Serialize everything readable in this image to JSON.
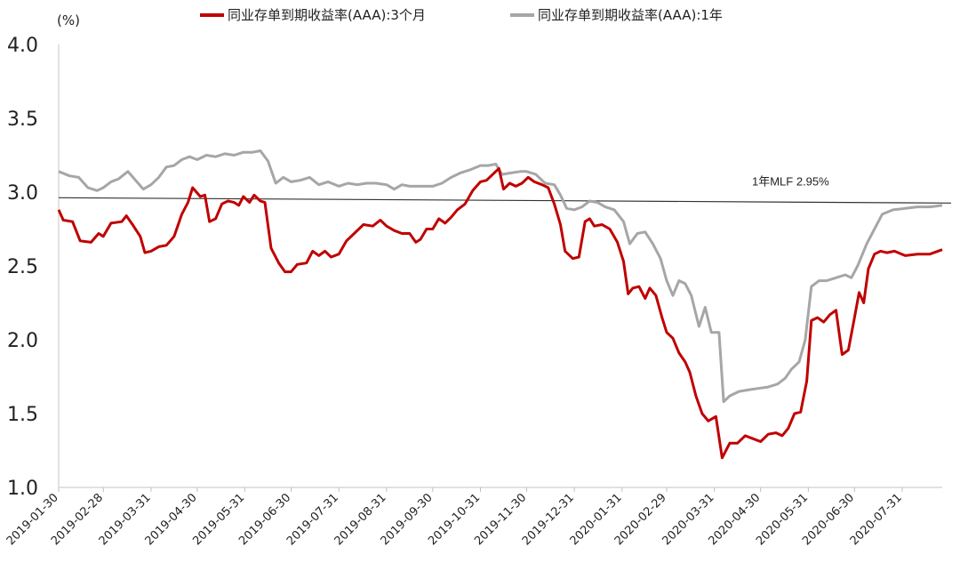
{
  "chart_data": {
    "type": "line",
    "unit_label": "(%)",
    "ylim": [
      1.0,
      4.0
    ],
    "y_ticks": [
      "1.0",
      "1.5",
      "2.0",
      "2.5",
      "3.0",
      "3.5",
      "4.0"
    ],
    "x_tick_labels": [
      "2019-01-30",
      "2019-02-28",
      "2019-03-31",
      "2019-04-30",
      "2019-05-31",
      "2019-06-30",
      "2019-07-31",
      "2019-08-31",
      "2019-09-30",
      "2019-10-31",
      "2019-11-30",
      "2019-12-31",
      "2020-01-31",
      "2020-02-29",
      "2020-03-31",
      "2020-04-30",
      "2020-05-31",
      "2020-06-30",
      "2020-07-31"
    ],
    "x_tick_dates": [
      "2019-01-30",
      "2019-02-28",
      "2019-03-31",
      "2019-04-30",
      "2019-05-31",
      "2019-06-30",
      "2019-07-31",
      "2019-08-31",
      "2019-09-30",
      "2019-10-31",
      "2019-11-30",
      "2019-12-31",
      "2020-01-31",
      "2020-02-29",
      "2020-03-31",
      "2020-04-30",
      "2020-05-31",
      "2020-06-30",
      "2020-07-31"
    ],
    "x_range": [
      "2019-01-30",
      "2020-08-26"
    ],
    "grid": false,
    "legend_position": "top",
    "reference_line": {
      "label": "1年MLF 2.95%",
      "value": 2.95,
      "color": "#333333"
    },
    "series": [
      {
        "name": "同业存单到期收益率(AAA):3个月",
        "color": "#c00000",
        "points": [
          [
            "2019-01-30",
            2.88
          ],
          [
            "2019-02-02",
            2.81
          ],
          [
            "2019-02-08",
            2.8
          ],
          [
            "2019-02-13",
            2.67
          ],
          [
            "2019-02-20",
            2.66
          ],
          [
            "2019-02-25",
            2.72
          ],
          [
            "2019-02-28",
            2.7
          ],
          [
            "2019-03-05",
            2.79
          ],
          [
            "2019-03-12",
            2.8
          ],
          [
            "2019-03-15",
            2.84
          ],
          [
            "2019-03-19",
            2.78
          ],
          [
            "2019-03-24",
            2.7
          ],
          [
            "2019-03-27",
            2.59
          ],
          [
            "2019-03-31",
            2.6
          ],
          [
            "2019-04-05",
            2.63
          ],
          [
            "2019-04-10",
            2.64
          ],
          [
            "2019-04-15",
            2.7
          ],
          [
            "2019-04-20",
            2.85
          ],
          [
            "2019-04-24",
            2.93
          ],
          [
            "2019-04-27",
            3.03
          ],
          [
            "2019-05-02",
            2.97
          ],
          [
            "2019-05-05",
            2.98
          ],
          [
            "2019-05-08",
            2.8
          ],
          [
            "2019-05-12",
            2.82
          ],
          [
            "2019-05-16",
            2.92
          ],
          [
            "2019-05-20",
            2.94
          ],
          [
            "2019-05-24",
            2.93
          ],
          [
            "2019-05-27",
            2.91
          ],
          [
            "2019-05-30",
            2.97
          ],
          [
            "2019-06-03",
            2.93
          ],
          [
            "2019-06-06",
            2.98
          ],
          [
            "2019-06-10",
            2.94
          ],
          [
            "2019-06-13",
            2.93
          ],
          [
            "2019-06-17",
            2.62
          ],
          [
            "2019-06-22",
            2.52
          ],
          [
            "2019-06-26",
            2.46
          ],
          [
            "2019-06-30",
            2.46
          ],
          [
            "2019-07-04",
            2.51
          ],
          [
            "2019-07-10",
            2.52
          ],
          [
            "2019-07-14",
            2.6
          ],
          [
            "2019-07-18",
            2.57
          ],
          [
            "2019-07-22",
            2.6
          ],
          [
            "2019-07-26",
            2.56
          ],
          [
            "2019-07-31",
            2.58
          ],
          [
            "2019-08-05",
            2.67
          ],
          [
            "2019-08-10",
            2.72
          ],
          [
            "2019-08-16",
            2.78
          ],
          [
            "2019-08-22",
            2.77
          ],
          [
            "2019-08-27",
            2.81
          ],
          [
            "2019-08-31",
            2.77
          ],
          [
            "2019-09-05",
            2.74
          ],
          [
            "2019-09-10",
            2.72
          ],
          [
            "2019-09-15",
            2.72
          ],
          [
            "2019-09-19",
            2.66
          ],
          [
            "2019-09-22",
            2.68
          ],
          [
            "2019-09-26",
            2.75
          ],
          [
            "2019-09-30",
            2.75
          ],
          [
            "2019-10-04",
            2.82
          ],
          [
            "2019-10-08",
            2.79
          ],
          [
            "2019-10-12",
            2.83
          ],
          [
            "2019-10-16",
            2.88
          ],
          [
            "2019-10-21",
            2.92
          ],
          [
            "2019-10-26",
            3.01
          ],
          [
            "2019-10-31",
            3.07
          ],
          [
            "2019-11-04",
            3.08
          ],
          [
            "2019-11-08",
            3.12
          ],
          [
            "2019-11-12",
            3.16
          ],
          [
            "2019-11-15",
            3.02
          ],
          [
            "2019-11-19",
            3.06
          ],
          [
            "2019-11-23",
            3.04
          ],
          [
            "2019-11-27",
            3.06
          ],
          [
            "2019-12-01",
            3.1
          ],
          [
            "2019-12-05",
            3.07
          ],
          [
            "2019-12-10",
            3.05
          ],
          [
            "2019-12-14",
            3.03
          ],
          [
            "2019-12-18",
            2.92
          ],
          [
            "2019-12-22",
            2.78
          ],
          [
            "2019-12-25",
            2.6
          ],
          [
            "2019-12-30",
            2.55
          ],
          [
            "2020-01-03",
            2.56
          ],
          [
            "2020-01-07",
            2.8
          ],
          [
            "2020-01-10",
            2.82
          ],
          [
            "2020-01-13",
            2.77
          ],
          [
            "2020-01-18",
            2.78
          ],
          [
            "2020-01-23",
            2.75
          ],
          [
            "2020-01-28",
            2.66
          ],
          [
            "2020-02-01",
            2.53
          ],
          [
            "2020-02-04",
            2.31
          ],
          [
            "2020-02-07",
            2.35
          ],
          [
            "2020-02-11",
            2.36
          ],
          [
            "2020-02-15",
            2.28
          ],
          [
            "2020-02-18",
            2.35
          ],
          [
            "2020-02-22",
            2.3
          ],
          [
            "2020-02-26",
            2.15
          ],
          [
            "2020-02-29",
            2.05
          ],
          [
            "2020-03-04",
            2.01
          ],
          [
            "2020-03-08",
            1.91
          ],
          [
            "2020-03-12",
            1.85
          ],
          [
            "2020-03-15",
            1.78
          ],
          [
            "2020-03-19",
            1.62
          ],
          [
            "2020-03-23",
            1.5
          ],
          [
            "2020-03-27",
            1.45
          ],
          [
            "2020-04-01",
            1.48
          ],
          [
            "2020-04-05",
            1.2
          ],
          [
            "2020-04-10",
            1.3
          ],
          [
            "2020-04-15",
            1.3
          ],
          [
            "2020-04-20",
            1.35
          ],
          [
            "2020-04-25",
            1.33
          ],
          [
            "2020-04-30",
            1.31
          ],
          [
            "2020-05-05",
            1.36
          ],
          [
            "2020-05-10",
            1.37
          ],
          [
            "2020-05-14",
            1.35
          ],
          [
            "2020-05-18",
            1.4
          ],
          [
            "2020-05-22",
            1.5
          ],
          [
            "2020-05-26",
            1.51
          ],
          [
            "2020-05-30",
            1.72
          ],
          [
            "2020-06-02",
            2.13
          ],
          [
            "2020-06-06",
            2.15
          ],
          [
            "2020-06-10",
            2.12
          ],
          [
            "2020-06-14",
            2.17
          ],
          [
            "2020-06-18",
            2.2
          ],
          [
            "2020-06-22",
            1.9
          ],
          [
            "2020-06-26",
            1.93
          ],
          [
            "2020-06-30",
            2.15
          ],
          [
            "2020-07-03",
            2.32
          ],
          [
            "2020-07-06",
            2.25
          ],
          [
            "2020-07-09",
            2.48
          ],
          [
            "2020-07-13",
            2.58
          ],
          [
            "2020-07-17",
            2.6
          ],
          [
            "2020-07-21",
            2.59
          ],
          [
            "2020-07-26",
            2.6
          ],
          [
            "2020-08-02",
            2.57
          ],
          [
            "2020-08-10",
            2.58
          ],
          [
            "2020-08-18",
            2.58
          ],
          [
            "2020-08-26",
            2.61
          ]
        ]
      },
      {
        "name": "同业存单到期收益率(AAA):1年",
        "color": "#a6a6a6",
        "points": [
          [
            "2019-01-30",
            3.14
          ],
          [
            "2019-02-06",
            3.11
          ],
          [
            "2019-02-12",
            3.1
          ],
          [
            "2019-02-18",
            3.03
          ],
          [
            "2019-02-24",
            3.01
          ],
          [
            "2019-02-28",
            3.03
          ],
          [
            "2019-03-05",
            3.07
          ],
          [
            "2019-03-10",
            3.09
          ],
          [
            "2019-03-16",
            3.14
          ],
          [
            "2019-03-21",
            3.08
          ],
          [
            "2019-03-26",
            3.02
          ],
          [
            "2019-03-31",
            3.05
          ],
          [
            "2019-04-05",
            3.1
          ],
          [
            "2019-04-10",
            3.17
          ],
          [
            "2019-04-15",
            3.18
          ],
          [
            "2019-04-20",
            3.22
          ],
          [
            "2019-04-25",
            3.24
          ],
          [
            "2019-04-30",
            3.22
          ],
          [
            "2019-05-06",
            3.25
          ],
          [
            "2019-05-12",
            3.24
          ],
          [
            "2019-05-18",
            3.26
          ],
          [
            "2019-05-24",
            3.25
          ],
          [
            "2019-05-30",
            3.27
          ],
          [
            "2019-06-05",
            3.27
          ],
          [
            "2019-06-10",
            3.28
          ],
          [
            "2019-06-15",
            3.21
          ],
          [
            "2019-06-20",
            3.06
          ],
          [
            "2019-06-25",
            3.1
          ],
          [
            "2019-06-30",
            3.07
          ],
          [
            "2019-07-06",
            3.08
          ],
          [
            "2019-07-12",
            3.1
          ],
          [
            "2019-07-18",
            3.05
          ],
          [
            "2019-07-24",
            3.07
          ],
          [
            "2019-07-31",
            3.04
          ],
          [
            "2019-08-06",
            3.06
          ],
          [
            "2019-08-12",
            3.05
          ],
          [
            "2019-08-18",
            3.06
          ],
          [
            "2019-08-24",
            3.06
          ],
          [
            "2019-08-31",
            3.05
          ],
          [
            "2019-09-05",
            3.02
          ],
          [
            "2019-09-10",
            3.05
          ],
          [
            "2019-09-15",
            3.04
          ],
          [
            "2019-09-20",
            3.04
          ],
          [
            "2019-09-25",
            3.04
          ],
          [
            "2019-09-30",
            3.04
          ],
          [
            "2019-10-06",
            3.06
          ],
          [
            "2019-10-12",
            3.1
          ],
          [
            "2019-10-18",
            3.13
          ],
          [
            "2019-10-24",
            3.15
          ],
          [
            "2019-10-31",
            3.18
          ],
          [
            "2019-11-05",
            3.18
          ],
          [
            "2019-11-10",
            3.19
          ],
          [
            "2019-11-14",
            3.12
          ],
          [
            "2019-11-20",
            3.13
          ],
          [
            "2019-11-26",
            3.14
          ],
          [
            "2019-11-30",
            3.14
          ],
          [
            "2019-12-06",
            3.12
          ],
          [
            "2019-12-12",
            3.06
          ],
          [
            "2019-12-18",
            3.05
          ],
          [
            "2019-12-22",
            2.98
          ],
          [
            "2019-12-26",
            2.89
          ],
          [
            "2019-12-31",
            2.88
          ],
          [
            "2020-01-05",
            2.9
          ],
          [
            "2020-01-10",
            2.94
          ],
          [
            "2020-01-15",
            2.93
          ],
          [
            "2020-01-20",
            2.9
          ],
          [
            "2020-01-26",
            2.88
          ],
          [
            "2020-02-01",
            2.8
          ],
          [
            "2020-02-05",
            2.65
          ],
          [
            "2020-02-10",
            2.72
          ],
          [
            "2020-02-15",
            2.73
          ],
          [
            "2020-02-20",
            2.65
          ],
          [
            "2020-02-25",
            2.55
          ],
          [
            "2020-02-29",
            2.4
          ],
          [
            "2020-03-04",
            2.3
          ],
          [
            "2020-03-08",
            2.4
          ],
          [
            "2020-03-12",
            2.38
          ],
          [
            "2020-03-16",
            2.3
          ],
          [
            "2020-03-21",
            2.09
          ],
          [
            "2020-03-25",
            2.22
          ],
          [
            "2020-03-29",
            2.05
          ],
          [
            "2020-04-03",
            2.05
          ],
          [
            "2020-04-06",
            1.58
          ],
          [
            "2020-04-10",
            1.62
          ],
          [
            "2020-04-16",
            1.65
          ],
          [
            "2020-04-22",
            1.66
          ],
          [
            "2020-04-28",
            1.67
          ],
          [
            "2020-05-05",
            1.68
          ],
          [
            "2020-05-11",
            1.7
          ],
          [
            "2020-05-16",
            1.74
          ],
          [
            "2020-05-20",
            1.8
          ],
          [
            "2020-05-25",
            1.85
          ],
          [
            "2020-05-29",
            2.0
          ],
          [
            "2020-06-02",
            2.36
          ],
          [
            "2020-06-07",
            2.4
          ],
          [
            "2020-06-12",
            2.4
          ],
          [
            "2020-06-18",
            2.42
          ],
          [
            "2020-06-24",
            2.44
          ],
          [
            "2020-06-28",
            2.42
          ],
          [
            "2020-07-02",
            2.5
          ],
          [
            "2020-07-08",
            2.65
          ],
          [
            "2020-07-13",
            2.75
          ],
          [
            "2020-07-18",
            2.85
          ],
          [
            "2020-07-25",
            2.88
          ],
          [
            "2020-08-02",
            2.89
          ],
          [
            "2020-08-10",
            2.9
          ],
          [
            "2020-08-18",
            2.9
          ],
          [
            "2020-08-26",
            2.91
          ]
        ]
      }
    ]
  }
}
